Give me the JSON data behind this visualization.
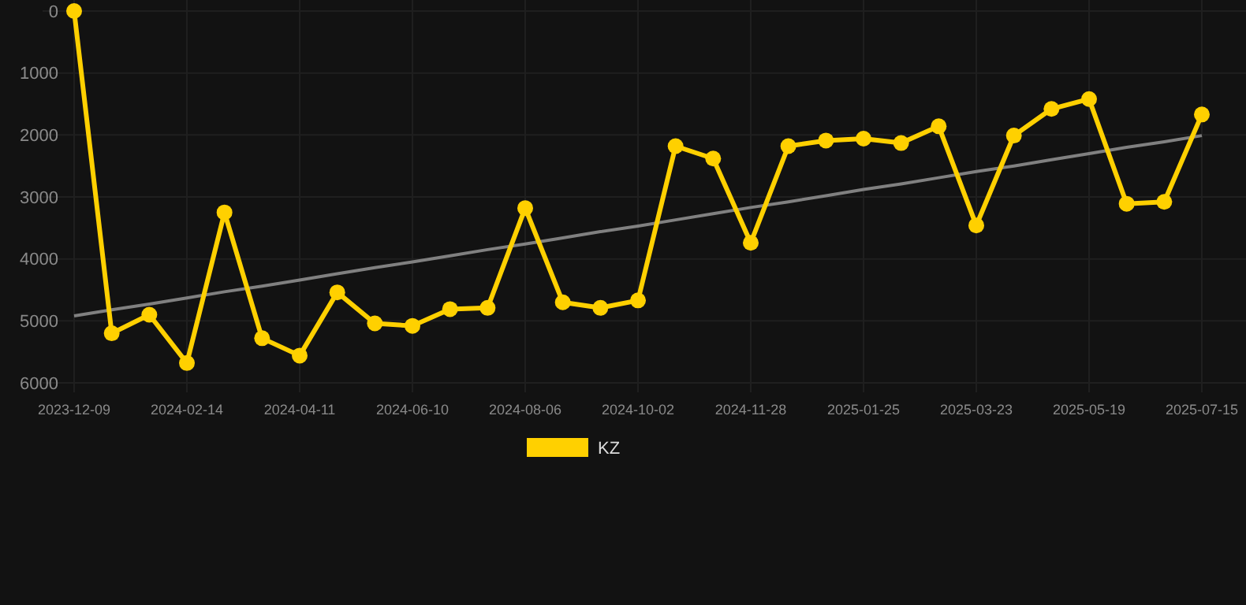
{
  "chart_data": {
    "type": "line",
    "categories": [
      "2023-12-09",
      null,
      null,
      "2024-02-14",
      null,
      null,
      "2024-04-11",
      null,
      null,
      "2024-06-10",
      null,
      null,
      "2024-08-06",
      null,
      null,
      "2024-10-02",
      null,
      null,
      "2024-11-28",
      null,
      null,
      "2025-01-25",
      null,
      null,
      "2025-03-23",
      null,
      null,
      "2025-05-19",
      null,
      null,
      "2025-07-15"
    ],
    "series": [
      {
        "name": "KZ",
        "color": "#ffd000",
        "marker": "circle",
        "values": [
          0,
          5200,
          4900,
          5680,
          3250,
          5280,
          5560,
          4540,
          5040,
          5080,
          4810,
          4790,
          3180,
          4700,
          4790,
          4670,
          2180,
          2380,
          3740,
          2180,
          2090,
          2060,
          2130,
          1860,
          3460,
          2010,
          1580,
          1420,
          3110,
          3080,
          1670
        ]
      },
      {
        "type": "line",
        "color": "#808080",
        "marker": "none",
        "values": [
          4920,
          4820,
          4730,
          4630,
          4530,
          4440,
          4340,
          4240,
          4140,
          4050,
          3950,
          3850,
          3760,
          3660,
          3560,
          3470,
          3370,
          3270,
          3170,
          3080,
          2980,
          2880,
          2790,
          2690,
          2590,
          2500,
          2400,
          2300,
          2200,
          2110,
          2010
        ]
      }
    ],
    "ylim": [
      6000,
      0
    ],
    "yticks": [
      0,
      1000,
      2000,
      3000,
      4000,
      5000,
      6000
    ],
    "grid": true,
    "legend": "bottom"
  }
}
